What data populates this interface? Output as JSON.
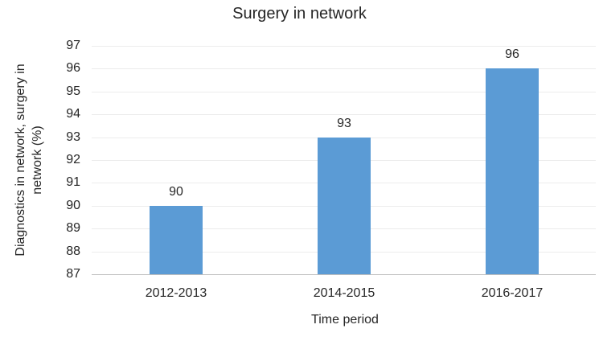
{
  "chart_data": {
    "type": "bar",
    "title": "Surgery in network",
    "categories": [
      "2012-2013",
      "2014-2015",
      "2016-2017"
    ],
    "values": [
      90,
      93,
      96
    ],
    "xlabel": "Time period",
    "ylabel": "Diagnostics in network, surgery in network (%)",
    "ylabel_lines": [
      "Diagnostics in network, surgery in",
      "network (%)"
    ],
    "ylim": [
      87,
      97
    ],
    "ytick_step": 1,
    "grid": true,
    "legend": false,
    "data_labels_shown": true
  },
  "colors": {
    "bar_fill": "#5b9bd5",
    "gridline": "#ececec",
    "axis_line": "#bfbfbf",
    "text": "#262626",
    "background": "#ffffff"
  }
}
